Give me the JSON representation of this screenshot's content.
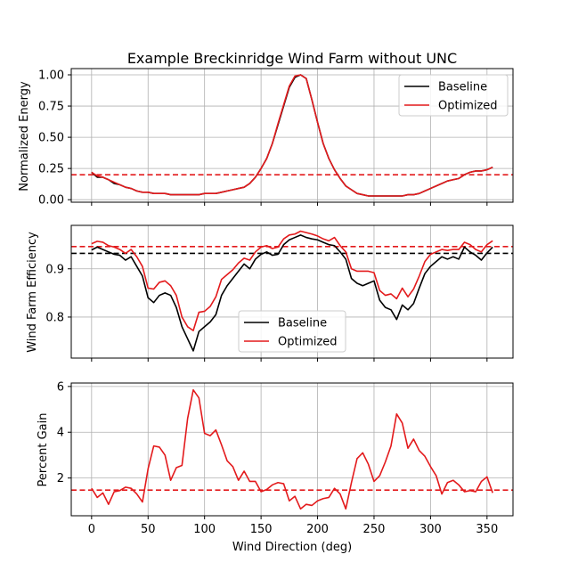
{
  "chart_data": [
    {
      "type": "line",
      "title": "Example Breckinridge Wind Farm without UNC",
      "xlabel": "",
      "ylabel": "Normalized Energy",
      "xlim": [
        -18,
        373
      ],
      "ylim": [
        -0.02,
        1.05
      ],
      "xticks": [
        0,
        50,
        100,
        150,
        200,
        250,
        300,
        350
      ],
      "yticks": [
        0.0,
        0.25,
        0.5,
        0.75,
        1.0
      ],
      "ytick_labels": [
        "0.00",
        "0.25",
        "0.50",
        "0.75",
        "1.00"
      ],
      "grid": true,
      "legend_position": "top-right",
      "x": [
        0,
        5,
        10,
        15,
        20,
        25,
        30,
        35,
        40,
        45,
        50,
        55,
        60,
        65,
        70,
        75,
        80,
        85,
        90,
        95,
        100,
        105,
        110,
        115,
        120,
        125,
        130,
        135,
        140,
        145,
        150,
        155,
        160,
        165,
        170,
        175,
        180,
        185,
        190,
        195,
        200,
        205,
        210,
        215,
        220,
        225,
        230,
        235,
        240,
        245,
        250,
        255,
        260,
        265,
        270,
        275,
        280,
        285,
        290,
        295,
        300,
        305,
        310,
        315,
        320,
        325,
        330,
        335,
        340,
        345,
        350,
        355
      ],
      "series": [
        {
          "name": "Baseline",
          "color": "#000000",
          "values": [
            0.22,
            0.18,
            0.18,
            0.16,
            0.13,
            0.12,
            0.1,
            0.09,
            0.07,
            0.06,
            0.06,
            0.05,
            0.05,
            0.05,
            0.04,
            0.04,
            0.04,
            0.04,
            0.04,
            0.04,
            0.05,
            0.05,
            0.05,
            0.06,
            0.07,
            0.08,
            0.09,
            0.1,
            0.13,
            0.18,
            0.25,
            0.33,
            0.45,
            0.6,
            0.75,
            0.9,
            0.98,
            1.0,
            0.97,
            0.8,
            0.62,
            0.45,
            0.33,
            0.24,
            0.17,
            0.11,
            0.08,
            0.05,
            0.04,
            0.03,
            0.03,
            0.03,
            0.03,
            0.03,
            0.03,
            0.03,
            0.04,
            0.04,
            0.05,
            0.07,
            0.09,
            0.11,
            0.13,
            0.15,
            0.16,
            0.17,
            0.2,
            0.22,
            0.23,
            0.23,
            0.24,
            0.26
          ]
        },
        {
          "name": "Optimized",
          "color": "#e31a1c",
          "values": [
            0.22,
            0.19,
            0.18,
            0.16,
            0.14,
            0.12,
            0.1,
            0.09,
            0.07,
            0.06,
            0.06,
            0.05,
            0.05,
            0.05,
            0.04,
            0.04,
            0.04,
            0.04,
            0.04,
            0.04,
            0.05,
            0.05,
            0.05,
            0.06,
            0.07,
            0.08,
            0.09,
            0.1,
            0.13,
            0.18,
            0.25,
            0.33,
            0.45,
            0.61,
            0.76,
            0.91,
            0.99,
            1.0,
            0.97,
            0.8,
            0.62,
            0.45,
            0.33,
            0.24,
            0.17,
            0.11,
            0.08,
            0.05,
            0.04,
            0.03,
            0.03,
            0.03,
            0.03,
            0.03,
            0.03,
            0.03,
            0.04,
            0.04,
            0.05,
            0.07,
            0.09,
            0.11,
            0.13,
            0.15,
            0.16,
            0.17,
            0.2,
            0.22,
            0.23,
            0.23,
            0.24,
            0.26
          ]
        }
      ],
      "hlines": [
        {
          "y": 0.2,
          "color": "#e31a1c",
          "style": "dashed"
        }
      ]
    },
    {
      "type": "line",
      "title": "",
      "xlabel": "",
      "ylabel": "Wind Farm Efficiency",
      "xlim": [
        -18,
        373
      ],
      "ylim": [
        0.715,
        0.99
      ],
      "xticks": [
        0,
        50,
        100,
        150,
        200,
        250,
        300,
        350
      ],
      "yticks": [
        0.8,
        0.9
      ],
      "ytick_labels": [
        "0.8",
        "0.9"
      ],
      "grid": true,
      "legend_position": "lower-center",
      "x": [
        0,
        5,
        10,
        15,
        20,
        25,
        30,
        35,
        40,
        45,
        50,
        55,
        60,
        65,
        70,
        75,
        80,
        85,
        90,
        95,
        100,
        105,
        110,
        115,
        120,
        125,
        130,
        135,
        140,
        145,
        150,
        155,
        160,
        165,
        170,
        175,
        180,
        185,
        190,
        195,
        200,
        205,
        210,
        215,
        220,
        225,
        230,
        235,
        240,
        245,
        250,
        255,
        260,
        265,
        270,
        275,
        280,
        285,
        290,
        295,
        300,
        305,
        310,
        315,
        320,
        325,
        330,
        335,
        340,
        345,
        350,
        355
      ],
      "series": [
        {
          "name": "Baseline",
          "color": "#000000",
          "values": [
            0.939,
            0.945,
            0.94,
            0.935,
            0.93,
            0.928,
            0.918,
            0.925,
            0.905,
            0.885,
            0.84,
            0.83,
            0.845,
            0.85,
            0.845,
            0.82,
            0.78,
            0.755,
            0.73,
            0.77,
            0.78,
            0.79,
            0.805,
            0.845,
            0.865,
            0.88,
            0.895,
            0.91,
            0.9,
            0.92,
            0.93,
            0.935,
            0.928,
            0.93,
            0.95,
            0.96,
            0.965,
            0.97,
            0.965,
            0.962,
            0.96,
            0.955,
            0.95,
            0.948,
            0.935,
            0.92,
            0.88,
            0.87,
            0.865,
            0.87,
            0.875,
            0.835,
            0.82,
            0.815,
            0.795,
            0.825,
            0.815,
            0.828,
            0.86,
            0.89,
            0.905,
            0.915,
            0.925,
            0.92,
            0.925,
            0.92,
            0.945,
            0.935,
            0.928,
            0.918,
            0.933,
            0.945
          ]
        },
        {
          "name": "Optimized",
          "color": "#e31a1c",
          "values": [
            0.952,
            0.957,
            0.955,
            0.948,
            0.945,
            0.94,
            0.932,
            0.94,
            0.925,
            0.905,
            0.86,
            0.858,
            0.872,
            0.875,
            0.865,
            0.845,
            0.8,
            0.78,
            0.772,
            0.81,
            0.812,
            0.822,
            0.842,
            0.878,
            0.888,
            0.898,
            0.912,
            0.922,
            0.918,
            0.935,
            0.945,
            0.948,
            0.942,
            0.945,
            0.962,
            0.97,
            0.972,
            0.978,
            0.975,
            0.972,
            0.968,
            0.962,
            0.958,
            0.965,
            0.948,
            0.935,
            0.9,
            0.895,
            0.895,
            0.895,
            0.892,
            0.855,
            0.845,
            0.848,
            0.838,
            0.86,
            0.842,
            0.858,
            0.885,
            0.915,
            0.93,
            0.935,
            0.94,
            0.938,
            0.94,
            0.94,
            0.955,
            0.95,
            0.94,
            0.935,
            0.95,
            0.958
          ]
        }
      ],
      "hlines": [
        {
          "y": 0.932,
          "color": "#000000",
          "style": "dashed"
        },
        {
          "y": 0.946,
          "color": "#e31a1c",
          "style": "dashed"
        }
      ]
    },
    {
      "type": "line",
      "title": "",
      "xlabel": "Wind Direction (deg)",
      "ylabel": "Percent Gain",
      "xlim": [
        -18,
        373
      ],
      "ylim": [
        0.35,
        6.15
      ],
      "xticks": [
        0,
        50,
        100,
        150,
        200,
        250,
        300,
        350
      ],
      "yticks": [
        2,
        4,
        6
      ],
      "ytick_labels": [
        "2",
        "4",
        "6"
      ],
      "grid": true,
      "legend_position": "none",
      "x": [
        0,
        5,
        10,
        15,
        20,
        25,
        30,
        35,
        40,
        45,
        50,
        55,
        60,
        65,
        70,
        75,
        80,
        85,
        90,
        95,
        100,
        105,
        110,
        115,
        120,
        125,
        130,
        135,
        140,
        145,
        150,
        155,
        160,
        165,
        170,
        175,
        180,
        185,
        190,
        195,
        200,
        205,
        210,
        215,
        220,
        225,
        230,
        235,
        240,
        245,
        250,
        255,
        260,
        265,
        270,
        275,
        280,
        285,
        290,
        295,
        300,
        305,
        310,
        315,
        320,
        325,
        330,
        335,
        340,
        345,
        350,
        355
      ],
      "series": [
        {
          "name": "Percent Gain",
          "color": "#e31a1c",
          "values": [
            1.55,
            1.15,
            1.35,
            0.85,
            1.4,
            1.45,
            1.6,
            1.55,
            1.3,
            0.95,
            2.4,
            3.4,
            3.35,
            3.0,
            1.9,
            2.45,
            2.55,
            4.6,
            5.85,
            5.5,
            3.95,
            3.85,
            4.1,
            3.45,
            2.75,
            2.5,
            1.9,
            2.3,
            1.85,
            1.85,
            1.4,
            1.5,
            1.7,
            1.8,
            1.75,
            1.0,
            1.2,
            0.65,
            0.85,
            0.8,
            1.0,
            1.1,
            1.15,
            1.55,
            1.3,
            0.65,
            1.8,
            2.85,
            3.1,
            2.6,
            1.85,
            2.1,
            2.7,
            3.4,
            4.8,
            4.4,
            3.3,
            3.7,
            3.2,
            2.95,
            2.5,
            2.1,
            1.3,
            1.8,
            1.9,
            1.7,
            1.4,
            1.45,
            1.4,
            1.85,
            2.05,
            1.35
          ]
        }
      ],
      "hlines": [
        {
          "y": 1.47,
          "color": "#e31a1c",
          "style": "dashed"
        }
      ]
    }
  ]
}
